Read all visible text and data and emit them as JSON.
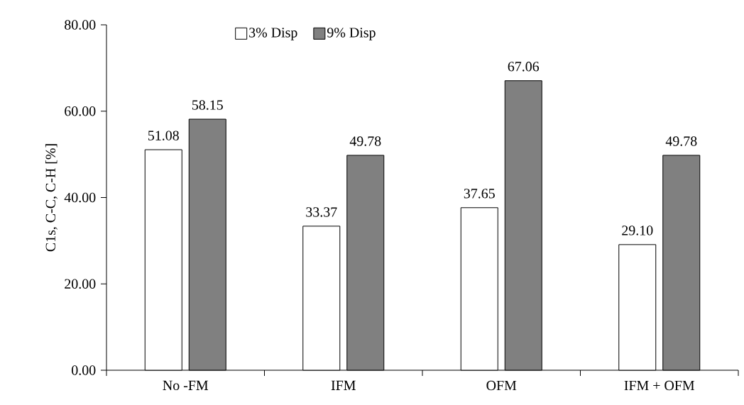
{
  "chart_data": {
    "type": "bar",
    "ylabel": "C1s, C-C, C-H [%]",
    "categories": [
      "No -FM",
      "IFM",
      "OFM",
      "IFM + OFM"
    ],
    "series": [
      {
        "name": "3% Disp",
        "color": "#ffffff",
        "values": [
          51.08,
          33.37,
          37.65,
          29.1
        ],
        "value_labels": [
          "51.08",
          "33.37",
          "37.65",
          "29.10"
        ]
      },
      {
        "name": "9% Disp",
        "color": "#808080",
        "values": [
          58.15,
          49.78,
          67.06,
          49.78
        ],
        "value_labels": [
          "58.15",
          "49.78",
          "67.06",
          "49.78"
        ]
      }
    ],
    "ylim": [
      0,
      80
    ],
    "yticks": [
      {
        "value": 0,
        "label": "0.00"
      },
      {
        "value": 20,
        "label": "20.00"
      },
      {
        "value": 40,
        "label": "40.00"
      },
      {
        "value": 60,
        "label": "60.00"
      },
      {
        "value": 80,
        "label": "80.00"
      }
    ],
    "grid": false,
    "legend": "top left"
  }
}
